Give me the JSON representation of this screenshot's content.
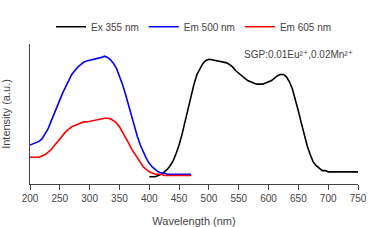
{
  "chart_data": {
    "type": "line",
    "xlabel": "Wavelength (nm)",
    "ylabel": "Intensity (a.u.)",
    "annotation": "SGP:0.01Eu²⁺,0.02Mn²⁺",
    "xlim": [
      200,
      750
    ],
    "xticks": [
      200,
      250,
      300,
      350,
      400,
      450,
      500,
      550,
      600,
      650,
      700,
      750
    ],
    "ylim": [
      -0.05,
      1.1
    ],
    "tick_labels": "x",
    "grid": false,
    "legend": "top",
    "series": [
      {
        "name": "Ex 355 nm",
        "color": "black",
        "x": [
          400,
          405,
          410,
          415,
          420,
          425,
          430,
          435,
          440,
          445,
          450,
          455,
          460,
          465,
          470,
          475,
          480,
          485,
          490,
          495,
          500,
          505,
          510,
          515,
          520,
          525,
          530,
          535,
          540,
          545,
          550,
          555,
          560,
          565,
          570,
          575,
          580,
          585,
          590,
          595,
          600,
          605,
          610,
          615,
          620,
          625,
          630,
          635,
          640,
          645,
          650,
          655,
          660,
          665,
          670,
          675,
          680,
          685,
          690,
          695,
          700,
          705,
          710,
          715,
          720,
          725,
          730,
          735,
          740,
          745,
          750
        ],
        "values": [
          0.01,
          0.01,
          0.01,
          0.02,
          0.03,
          0.05,
          0.07,
          0.1,
          0.14,
          0.2,
          0.27,
          0.36,
          0.46,
          0.57,
          0.68,
          0.77,
          0.85,
          0.9,
          0.94,
          0.965,
          0.975,
          0.97,
          0.965,
          0.96,
          0.955,
          0.95,
          0.945,
          0.93,
          0.91,
          0.88,
          0.86,
          0.84,
          0.82,
          0.8,
          0.79,
          0.78,
          0.77,
          0.77,
          0.77,
          0.78,
          0.79,
          0.8,
          0.82,
          0.84,
          0.85,
          0.85,
          0.83,
          0.79,
          0.73,
          0.65,
          0.55,
          0.45,
          0.35,
          0.26,
          0.19,
          0.13,
          0.1,
          0.08,
          0.06,
          0.06,
          0.05,
          0.05,
          0.05,
          0.05,
          0.05,
          0.05,
          0.05,
          0.05,
          0.05,
          0.05,
          0.05
        ]
      },
      {
        "name": "Em 500 nm",
        "color": "blue",
        "x": [
          200,
          205,
          210,
          215,
          220,
          225,
          230,
          235,
          240,
          245,
          250,
          255,
          260,
          265,
          270,
          275,
          280,
          285,
          290,
          295,
          300,
          305,
          310,
          315,
          320,
          325,
          330,
          335,
          340,
          345,
          350,
          355,
          360,
          365,
          370,
          375,
          380,
          385,
          390,
          395,
          400,
          405,
          410,
          415,
          420,
          425,
          430,
          435,
          440,
          445,
          450,
          455,
          460,
          465,
          470
        ],
        "values": [
          0.27,
          0.28,
          0.29,
          0.3,
          0.32,
          0.36,
          0.4,
          0.46,
          0.52,
          0.58,
          0.65,
          0.7,
          0.75,
          0.8,
          0.85,
          0.88,
          0.91,
          0.93,
          0.95,
          0.96,
          0.965,
          0.97,
          0.975,
          0.98,
          0.99,
          1.0,
          0.99,
          0.97,
          0.94,
          0.9,
          0.84,
          0.77,
          0.69,
          0.6,
          0.51,
          0.42,
          0.34,
          0.27,
          0.21,
          0.16,
          0.12,
          0.09,
          0.07,
          0.05,
          0.04,
          0.04,
          0.03,
          0.03,
          0.03,
          0.03,
          0.03,
          0.03,
          0.03,
          0.03,
          0.03
        ]
      },
      {
        "name": "Em 605 nm",
        "color": "red",
        "x": [
          200,
          205,
          210,
          215,
          220,
          225,
          230,
          235,
          240,
          245,
          250,
          255,
          260,
          265,
          270,
          275,
          280,
          285,
          290,
          295,
          300,
          305,
          310,
          315,
          320,
          325,
          330,
          335,
          340,
          345,
          350,
          355,
          360,
          365,
          370,
          375,
          380,
          385,
          390,
          395,
          400,
          405,
          410,
          415,
          420,
          425,
          430,
          435,
          440,
          445,
          450,
          455,
          460,
          465,
          470
        ],
        "values": [
          0.17,
          0.17,
          0.17,
          0.17,
          0.18,
          0.19,
          0.21,
          0.23,
          0.26,
          0.29,
          0.32,
          0.35,
          0.38,
          0.4,
          0.42,
          0.43,
          0.44,
          0.45,
          0.46,
          0.46,
          0.465,
          0.47,
          0.475,
          0.48,
          0.49,
          0.49,
          0.49,
          0.485,
          0.47,
          0.45,
          0.42,
          0.38,
          0.34,
          0.29,
          0.24,
          0.2,
          0.16,
          0.12,
          0.09,
          0.07,
          0.05,
          0.04,
          0.03,
          0.03,
          0.03,
          0.02,
          0.02,
          0.02,
          0.02,
          0.02,
          0.02,
          0.02,
          0.02,
          0.02,
          0.02
        ]
      }
    ]
  }
}
